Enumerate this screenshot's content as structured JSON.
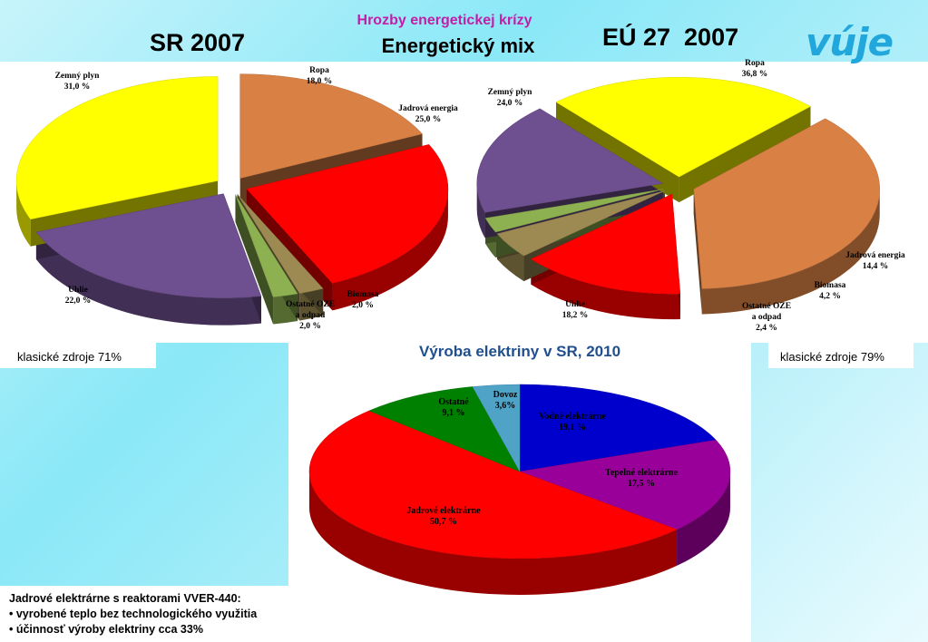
{
  "header": {
    "top_title": "Hrozby energetickej krízy",
    "mix_title": "Energetický mix",
    "logo_text": "vúje"
  },
  "notes": {
    "left": "klasické zdroje 71%",
    "right": "klasické zdroje 79%"
  },
  "info": {
    "lines": [
      "Jadrové elektrárne s reaktorami VVER-440:",
      "• vyrobené teplo bez technologického využitia",
      "• účinnosť výroby elektriny cca 33%"
    ]
  },
  "chart_data": [
    {
      "type": "pie",
      "title": "SR 2007",
      "slices": [
        {
          "label": "Ropa",
          "value": 18.0,
          "value_label": "18,0 %",
          "color": "#d98045"
        },
        {
          "label": "Jadrová energia",
          "value": 25.0,
          "value_label": "25,0 %",
          "color": "#ff0000"
        },
        {
          "label": "Biomasa",
          "value": 2.0,
          "value_label": "2,0 %",
          "color": "#9c8a52"
        },
        {
          "label": "Ostatné OZE a odpad",
          "label_lines": [
            "Ostatné OZE",
            "a odpad"
          ],
          "value": 2.0,
          "value_label": "2,0 %",
          "color": "#8db050"
        },
        {
          "label": "Uhlie",
          "value": 22.0,
          "value_label": "22,0 %",
          "color": "#6e4f8f"
        },
        {
          "label": "Zemný plyn",
          "value": 31.0,
          "value_label": "31,0 %",
          "color": "#ffff00"
        }
      ]
    },
    {
      "type": "pie",
      "title": "EÚ 27  2007",
      "slices": [
        {
          "label": "Ropa",
          "value": 36.8,
          "value_label": "36,8 %",
          "color": "#d98045"
        },
        {
          "label": "Jadrová energia",
          "value": 14.4,
          "value_label": "14,4 %",
          "color": "#ff0000"
        },
        {
          "label": "Biomasa",
          "value": 4.2,
          "value_label": "4,2 %",
          "color": "#9c8a52"
        },
        {
          "label": "Ostatné OZE a odpad",
          "label_lines": [
            "Ostatné OZE",
            "a odpad"
          ],
          "value": 2.4,
          "value_label": "2,4 %",
          "color": "#8db050"
        },
        {
          "label": "Uhlie",
          "value": 18.2,
          "value_label": "18,2 %",
          "color": "#6e4f8f"
        },
        {
          "label": "Zemný plyn",
          "value": 24.0,
          "value_label": "24,0 %",
          "color": "#ffff00"
        }
      ]
    },
    {
      "type": "pie",
      "title": "Výroba elektriny v SR, 2010",
      "slices": [
        {
          "label": "Vodné elektrárne",
          "value": 19.1,
          "value_label": "19,1 %",
          "color": "#0000cc"
        },
        {
          "label": "Tepelné elektrárne",
          "value": 17.5,
          "value_label": "17,5 %",
          "color": "#990099"
        },
        {
          "label": "Jadrové elektrárne",
          "value": 50.7,
          "value_label": "50,7 %",
          "color": "#ff0000"
        },
        {
          "label": "Ostatné",
          "value": 9.1,
          "value_label": "9,1 %",
          "color": "#008000"
        },
        {
          "label": "Dovoz",
          "value": 3.6,
          "value_label": "3,6%",
          "color": "#4fa3c7"
        }
      ]
    }
  ]
}
